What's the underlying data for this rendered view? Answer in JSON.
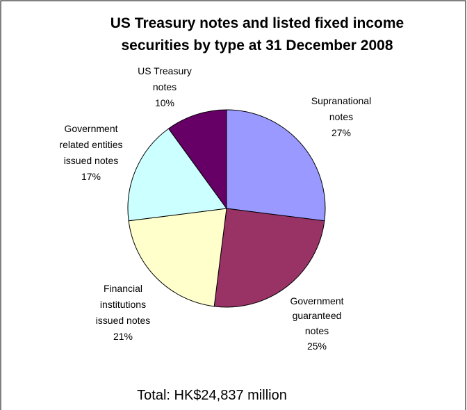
{
  "chart_data": {
    "type": "pie",
    "title": "US Treasury notes and listed fixed income securities by type at 31 December 2008",
    "title_lines": [
      "US Treasury notes and listed fixed income",
      "securities by type at 31 December 2008"
    ],
    "slices": [
      {
        "label_lines": [
          "Supranational",
          "notes"
        ],
        "label": "Supranational notes",
        "value": 27,
        "percent_label": "27%",
        "color": "#9999ff"
      },
      {
        "label_lines": [
          "Government",
          "guaranteed",
          "notes"
        ],
        "label": "Government guaranteed notes",
        "value": 25,
        "percent_label": "25%",
        "color": "#993366"
      },
      {
        "label_lines": [
          "Financial",
          "institutions",
          "issued notes"
        ],
        "label": "Financial institutions issued notes",
        "value": 21,
        "percent_label": "21%",
        "color": "#ffffcc"
      },
      {
        "label_lines": [
          "Government",
          "related entities",
          "issued notes"
        ],
        "label": "Government related entities issued notes",
        "value": 17,
        "percent_label": "17%",
        "color": "#ccffff"
      },
      {
        "label_lines": [
          "US Treasury",
          "notes"
        ],
        "label": "US Treasury notes",
        "value": 10,
        "percent_label": "10%",
        "color": "#660066"
      }
    ],
    "start_angle_deg": 0,
    "direction": "clockwise",
    "footer": "Total: HK$24,837 million"
  }
}
